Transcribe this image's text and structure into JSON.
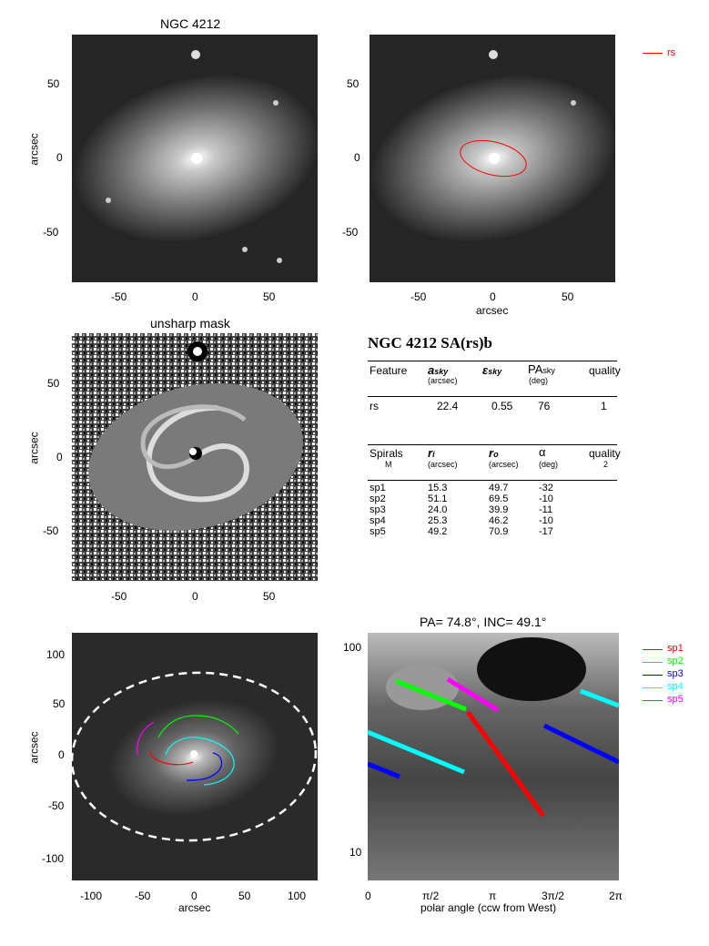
{
  "panel1": {
    "title": "NGC 4212",
    "ylabel": "arcsec",
    "xticks": [
      "-50",
      "0",
      "50"
    ],
    "yticks": [
      "50",
      "0",
      "-50"
    ]
  },
  "panel2": {
    "xlabel": "arcsec",
    "xticks": [
      "-50",
      "0",
      "50"
    ],
    "yticks": [
      "50",
      "0",
      "-50"
    ],
    "legend": "rs",
    "legend_color": "#ff0000"
  },
  "panel3": {
    "title": "unsharp mask",
    "ylabel": "arcsec",
    "xticks": [
      "-50",
      "0",
      "50"
    ],
    "yticks": [
      "50",
      "0",
      "-50"
    ]
  },
  "table": {
    "title": "NGC 4212  SA(rs)b",
    "feature_header": {
      "feature": "Feature",
      "a": "a",
      "a_sub": "sky",
      "a_unit": "(arcsec)",
      "eps": "ε",
      "eps_sub": "sky",
      "pa": "PA",
      "pa_sub": "sky",
      "pa_unit": "(deg)",
      "quality": "quality"
    },
    "feature_row": {
      "name": "rs",
      "a": "22.4",
      "eps": "0.55",
      "pa": "76",
      "quality": "1"
    },
    "spiral_header": {
      "spirals": "Spirals",
      "m": "M",
      "ri": "r",
      "ri_sub": "i",
      "ri_unit": "(arcsec)",
      "ro": "r",
      "ro_sub": "o",
      "ro_unit": "(arcsec)",
      "alpha": "α",
      "alpha_unit": "(deg)",
      "quality": "quality",
      "quality_val": "2"
    },
    "spirals": [
      {
        "name": "sp1",
        "ri": "15.3",
        "ro": "49.7",
        "alpha": "-32"
      },
      {
        "name": "sp2",
        "ri": "51.1",
        "ro": "69.5",
        "alpha": "-10"
      },
      {
        "name": "sp3",
        "ri": "24.0",
        "ro": "39.9",
        "alpha": "-11"
      },
      {
        "name": "sp4",
        "ri": "25.3",
        "ro": "46.2",
        "alpha": "-10"
      },
      {
        "name": "sp5",
        "ri": "49.2",
        "ro": "70.9",
        "alpha": "-17"
      }
    ]
  },
  "panel5": {
    "xlabel": "arcsec",
    "ylabel": "arcsec",
    "xticks": [
      "-100",
      "-50",
      "0",
      "50",
      "100"
    ],
    "yticks": [
      "100",
      "50",
      "0",
      "-50",
      "-100"
    ]
  },
  "panel6": {
    "title": "PA=  74.8°, INC=  49.1°",
    "xlabel": "polar angle (ccw from West)",
    "xticks": [
      "0",
      "π/2",
      "π",
      "3π/2",
      "2π"
    ],
    "yticks": [
      "100",
      "10"
    ]
  },
  "legend_spirals": [
    {
      "name": "sp1",
      "color": "#ff0000"
    },
    {
      "name": "sp2",
      "color": "#00ff00"
    },
    {
      "name": "sp3",
      "color": "#0000ff"
    },
    {
      "name": "sp4",
      "color": "#00ffff"
    },
    {
      "name": "sp5",
      "color": "#ff00ff"
    }
  ]
}
